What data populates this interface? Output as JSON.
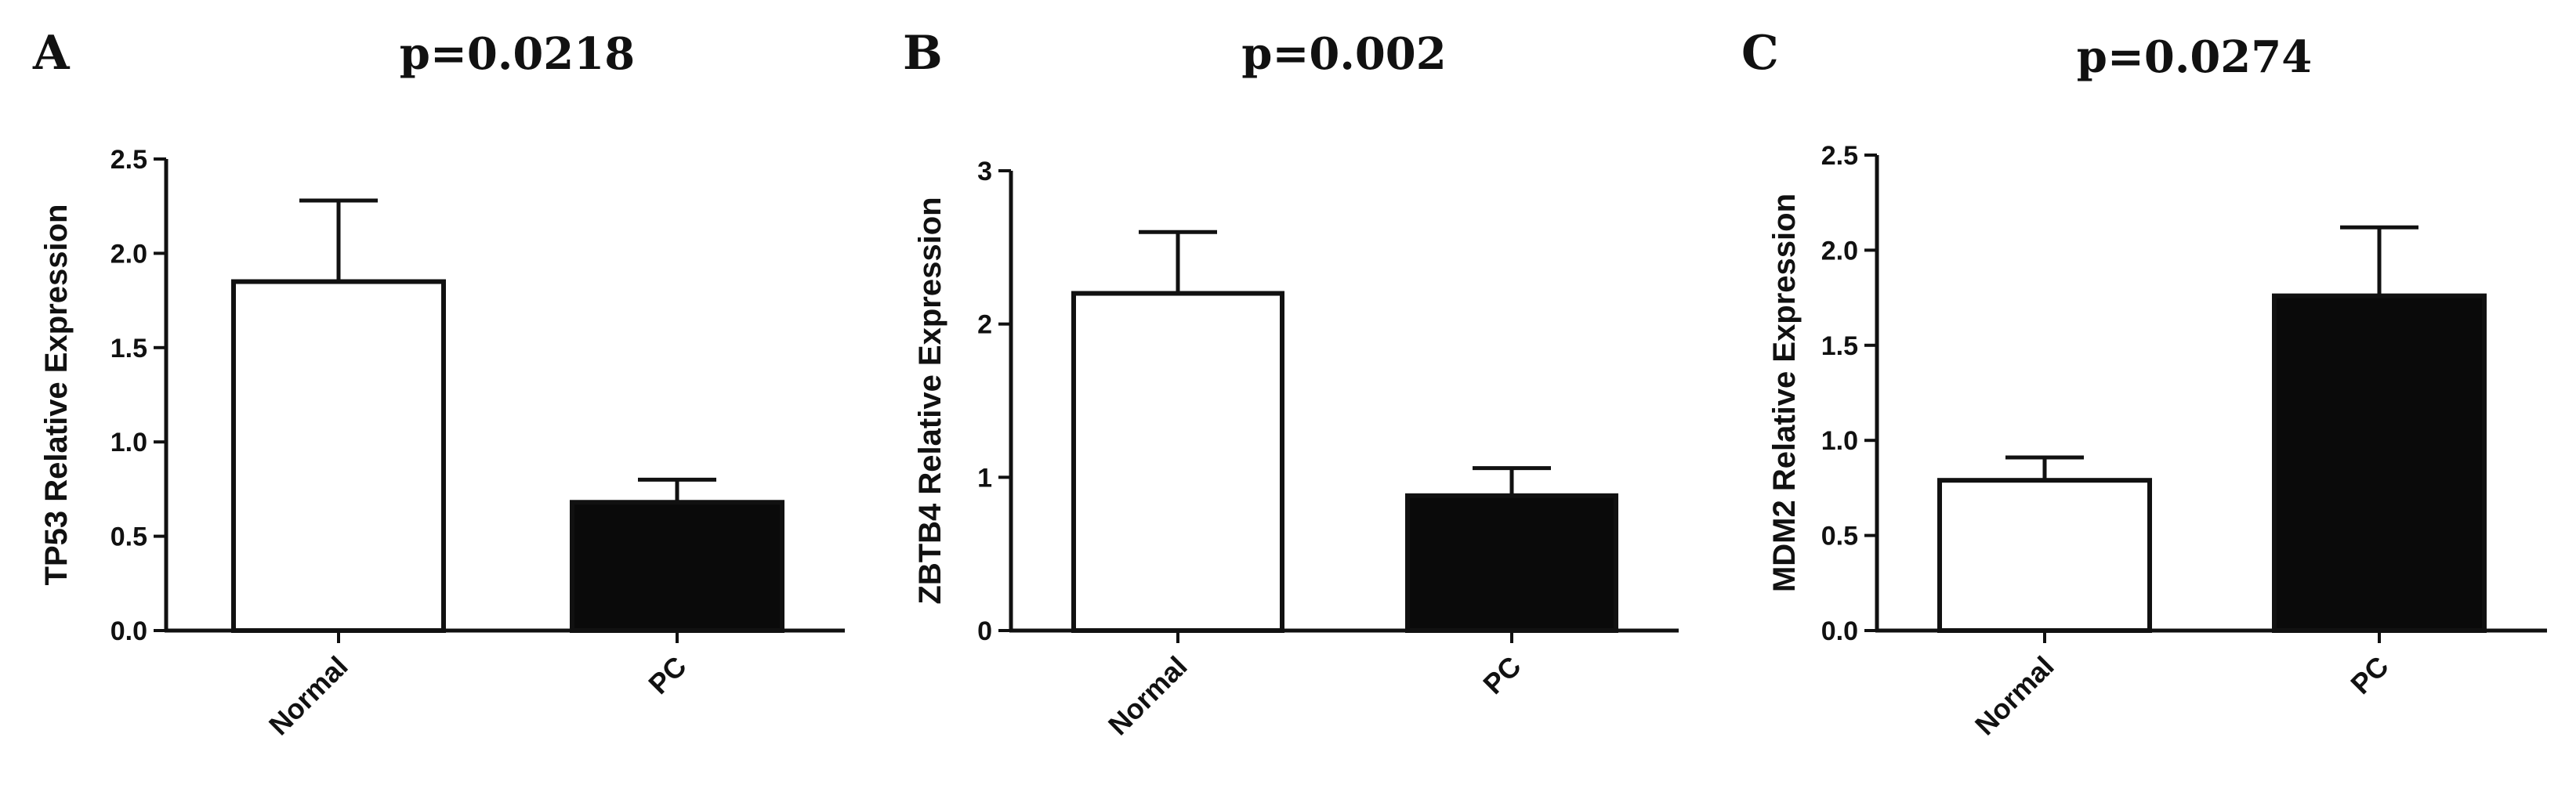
{
  "chart_data": [
    {
      "type": "bar",
      "panel": "A",
      "title": "p=0.0218",
      "ylabel": "TP53 Relative Expression",
      "categories": [
        "Normal",
        "PC"
      ],
      "values": [
        1.85,
        0.68
      ],
      "errors": [
        0.43,
        0.12
      ],
      "fills": [
        "#ffffff",
        "#0a0a0a"
      ],
      "ylim": [
        0,
        2.5
      ],
      "yticks": [
        "0.0",
        "0.5",
        "1.0",
        "1.5",
        "2.0",
        "2.5"
      ],
      "grid": false,
      "legend": "none"
    },
    {
      "type": "bar",
      "panel": "B",
      "title": "p=0.002",
      "ylabel": "ZBTB4 Relative Expression",
      "categories": [
        "Normal",
        "PC"
      ],
      "values": [
        2.2,
        0.88
      ],
      "errors": [
        0.4,
        0.18
      ],
      "fills": [
        "#ffffff",
        "#0a0a0a"
      ],
      "ylim": [
        0,
        3
      ],
      "yticks": [
        "0",
        "1",
        "2",
        "3"
      ],
      "grid": false,
      "legend": "none"
    },
    {
      "type": "bar",
      "panel": "C",
      "title": "p=0.0274",
      "ylabel": "MDM2 Relative Expression",
      "categories": [
        "Normal",
        "PC"
      ],
      "values": [
        0.79,
        1.76
      ],
      "errors": [
        0.12,
        0.36
      ],
      "fills": [
        "#ffffff",
        "#0a0a0a"
      ],
      "ylim": [
        0,
        2.5
      ],
      "yticks": [
        "0.0",
        "0.5",
        "1.0",
        "1.5",
        "2.0",
        "2.5"
      ],
      "grid": false,
      "legend": "none"
    }
  ]
}
